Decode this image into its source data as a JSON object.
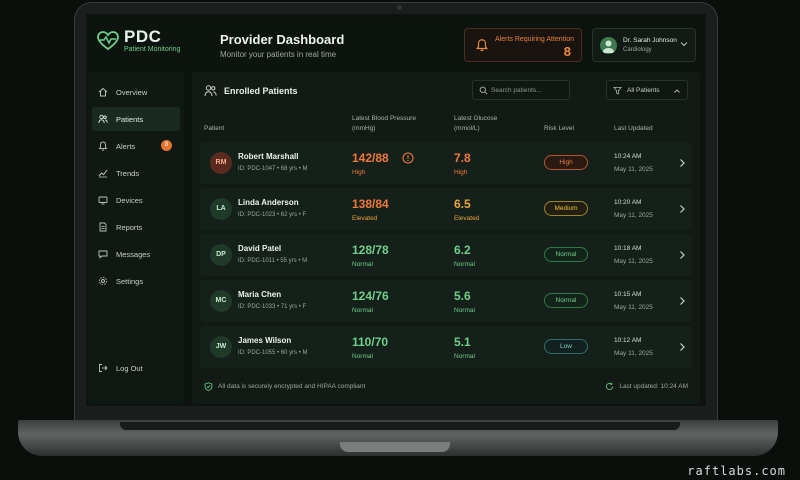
{
  "brand": {
    "name": "PDC",
    "tagline": "Patient Monitoring"
  },
  "header": {
    "title": "Provider Dashboard",
    "subtitle": "Monitor your patients in real time",
    "alerts": {
      "label": "Alerts Requiring Attention",
      "count": "8"
    },
    "user": {
      "name": "Dr. Sarah Johnson",
      "role": "Cardiology"
    }
  },
  "sidebar": {
    "items": [
      {
        "label": "Overview",
        "icon": "home-icon"
      },
      {
        "label": "Patients",
        "icon": "users-icon",
        "active": true
      },
      {
        "label": "Alerts",
        "icon": "bell-icon",
        "badge": "8"
      },
      {
        "label": "Trends",
        "icon": "trend-icon"
      },
      {
        "label": "Devices",
        "icon": "device-icon"
      },
      {
        "label": "Reports",
        "icon": "report-icon"
      },
      {
        "label": "Messages",
        "icon": "message-icon"
      },
      {
        "label": "Settings",
        "icon": "gear-icon"
      }
    ],
    "logout": "Log Out"
  },
  "main": {
    "title": "Enrolled Patients",
    "search_placeholder": "Search patients...",
    "filter": "All Patients",
    "columns": {
      "patient": "Patient",
      "bp": "Latest Blood Pressure",
      "bp_unit": "(mmHg)",
      "glucose": "Latest Glucose",
      "glucose_unit": "(mmol/L)",
      "risk": "Risk Level",
      "updated": "Last Updated"
    },
    "patients": [
      {
        "initials": "RM",
        "name": "Robert Marshall",
        "meta": "ID: PDC-1047 • 68 yrs • M",
        "bp": "142/88",
        "bp_status": "High",
        "glucose": "7.8",
        "glucose_status": "High",
        "risk": "High",
        "time": "10:24 AM",
        "date": "May 11, 2025"
      },
      {
        "initials": "LA",
        "name": "Linda Anderson",
        "meta": "ID: PDC-1023 • 62 yrs • F",
        "bp": "138/84",
        "bp_status": "Elevated",
        "glucose": "6.5",
        "glucose_status": "Elevated",
        "risk": "Medium",
        "time": "10:20 AM",
        "date": "May 11, 2025"
      },
      {
        "initials": "DP",
        "name": "David Patel",
        "meta": "ID: PDC-1011 • 55 yrs • M",
        "bp": "128/78",
        "bp_status": "Normal",
        "glucose": "6.2",
        "glucose_status": "Normal",
        "risk": "Normal",
        "time": "10:18 AM",
        "date": "May 11, 2025"
      },
      {
        "initials": "MC",
        "name": "Maria Chen",
        "meta": "ID: PDC-1033 • 71 yrs • F",
        "bp": "124/76",
        "bp_status": "Normal",
        "glucose": "5.6",
        "glucose_status": "Normal",
        "risk": "Normal",
        "time": "10:15 AM",
        "date": "May 11, 2025"
      },
      {
        "initials": "JW",
        "name": "James Wilson",
        "meta": "ID: PDC-1055 • 60 yrs • M",
        "bp": "110/70",
        "bp_status": "Normal",
        "glucose": "5.1",
        "glucose_status": "Normal",
        "risk": "Low",
        "time": "10:12 AM",
        "date": "May 11, 2025"
      }
    ],
    "footer_left": "All data is securely encrypted and HIPAA compliant",
    "footer_right": "Last updated: 10:24 AM"
  },
  "colors": {
    "high": "#f0793a",
    "elevated": "#e9a53a",
    "normal": "#6fd08a",
    "low": "#7fd3c8"
  },
  "watermark": "raftlabs.com"
}
